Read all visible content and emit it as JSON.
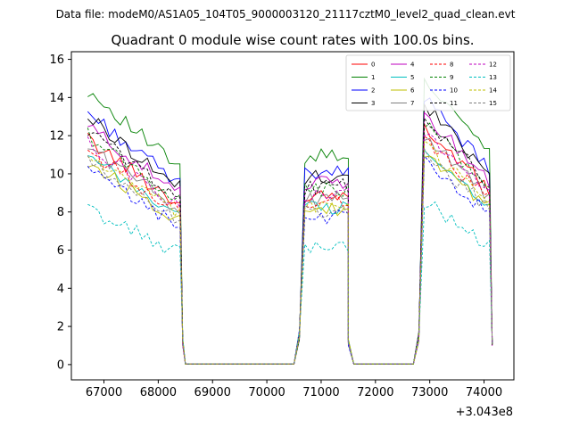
{
  "chart_data": {
    "type": "line",
    "suptitle": "Data file: modeM0/AS1A05_104T05_9000003120_21117cztM0_level2_quad_clean.evt",
    "title": "Quadrant 0 module wise count rates with 100.0s bins.",
    "xlabel": "",
    "ylabel": "",
    "x_offset_label": "+3.043e8",
    "xlim": [
      66400,
      74550
    ],
    "ylim": [
      -0.8,
      16.4
    ],
    "xticks": [
      67000,
      68000,
      69000,
      70000,
      71000,
      72000,
      73000,
      74000
    ],
    "yticks": [
      0,
      2,
      4,
      6,
      8,
      10,
      12,
      14,
      16
    ],
    "xtick_labels": [
      "67000",
      "68000",
      "69000",
      "70000",
      "71000",
      "72000",
      "73000",
      "74000"
    ],
    "ytick_labels": [
      "0",
      "2",
      "4",
      "6",
      "8",
      "10",
      "12",
      "14",
      "16"
    ],
    "legend_position": "top-right",
    "legend_ncol": 4,
    "series": [
      {
        "name": "0",
        "color": "#ff0000",
        "dash": "solid",
        "level": 1.0
      },
      {
        "name": "1",
        "color": "#008000",
        "dash": "solid",
        "level": 1.22
      },
      {
        "name": "2",
        "color": "#0000ff",
        "dash": "solid",
        "level": 1.12
      },
      {
        "name": "3",
        "color": "#000000",
        "dash": "solid",
        "level": 1.1
      },
      {
        "name": "4",
        "color": "#bf00bf",
        "dash": "solid",
        "level": 1.06
      },
      {
        "name": "5",
        "color": "#00bfbf",
        "dash": "solid",
        "level": 0.92
      },
      {
        "name": "6",
        "color": "#bfbf00",
        "dash": "solid",
        "level": 0.9
      },
      {
        "name": "7",
        "color": "#808080",
        "dash": "solid",
        "level": 0.97
      },
      {
        "name": "8",
        "color": "#ff0000",
        "dash": "dashed",
        "level": 0.95
      },
      {
        "name": "9",
        "color": "#008000",
        "dash": "dashed",
        "level": 1.02
      },
      {
        "name": "10",
        "color": "#0000ff",
        "dash": "dashed",
        "level": 0.86
      },
      {
        "name": "11",
        "color": "#000000",
        "dash": "dashed",
        "level": 1.04
      },
      {
        "name": "12",
        "color": "#bf00bf",
        "dash": "dashed",
        "level": 0.98
      },
      {
        "name": "13",
        "color": "#00bfbf",
        "dash": "dashed",
        "level": 0.69
      },
      {
        "name": "14",
        "color": "#bfbf00",
        "dash": "dashed",
        "level": 0.93
      },
      {
        "name": "15",
        "color": "#808080",
        "dash": "dashed",
        "level": 0.9
      }
    ],
    "segments": [
      {
        "x_start": 66700,
        "x_end": 68400,
        "y_start": 11.8,
        "y_end": 8.4
      },
      {
        "x_start": 70700,
        "x_end": 71450,
        "y_start": 8.9,
        "y_end": 9.0
      },
      {
        "x_start": 72900,
        "x_end": 74100,
        "y_start": 12.4,
        "y_end": 9.1
      }
    ],
    "gaps": [
      {
        "x_start": 68500,
        "x_end": 70500,
        "y": 0.03
      },
      {
        "x_start": 71600,
        "x_end": 72700,
        "y": 0.03
      }
    ]
  }
}
